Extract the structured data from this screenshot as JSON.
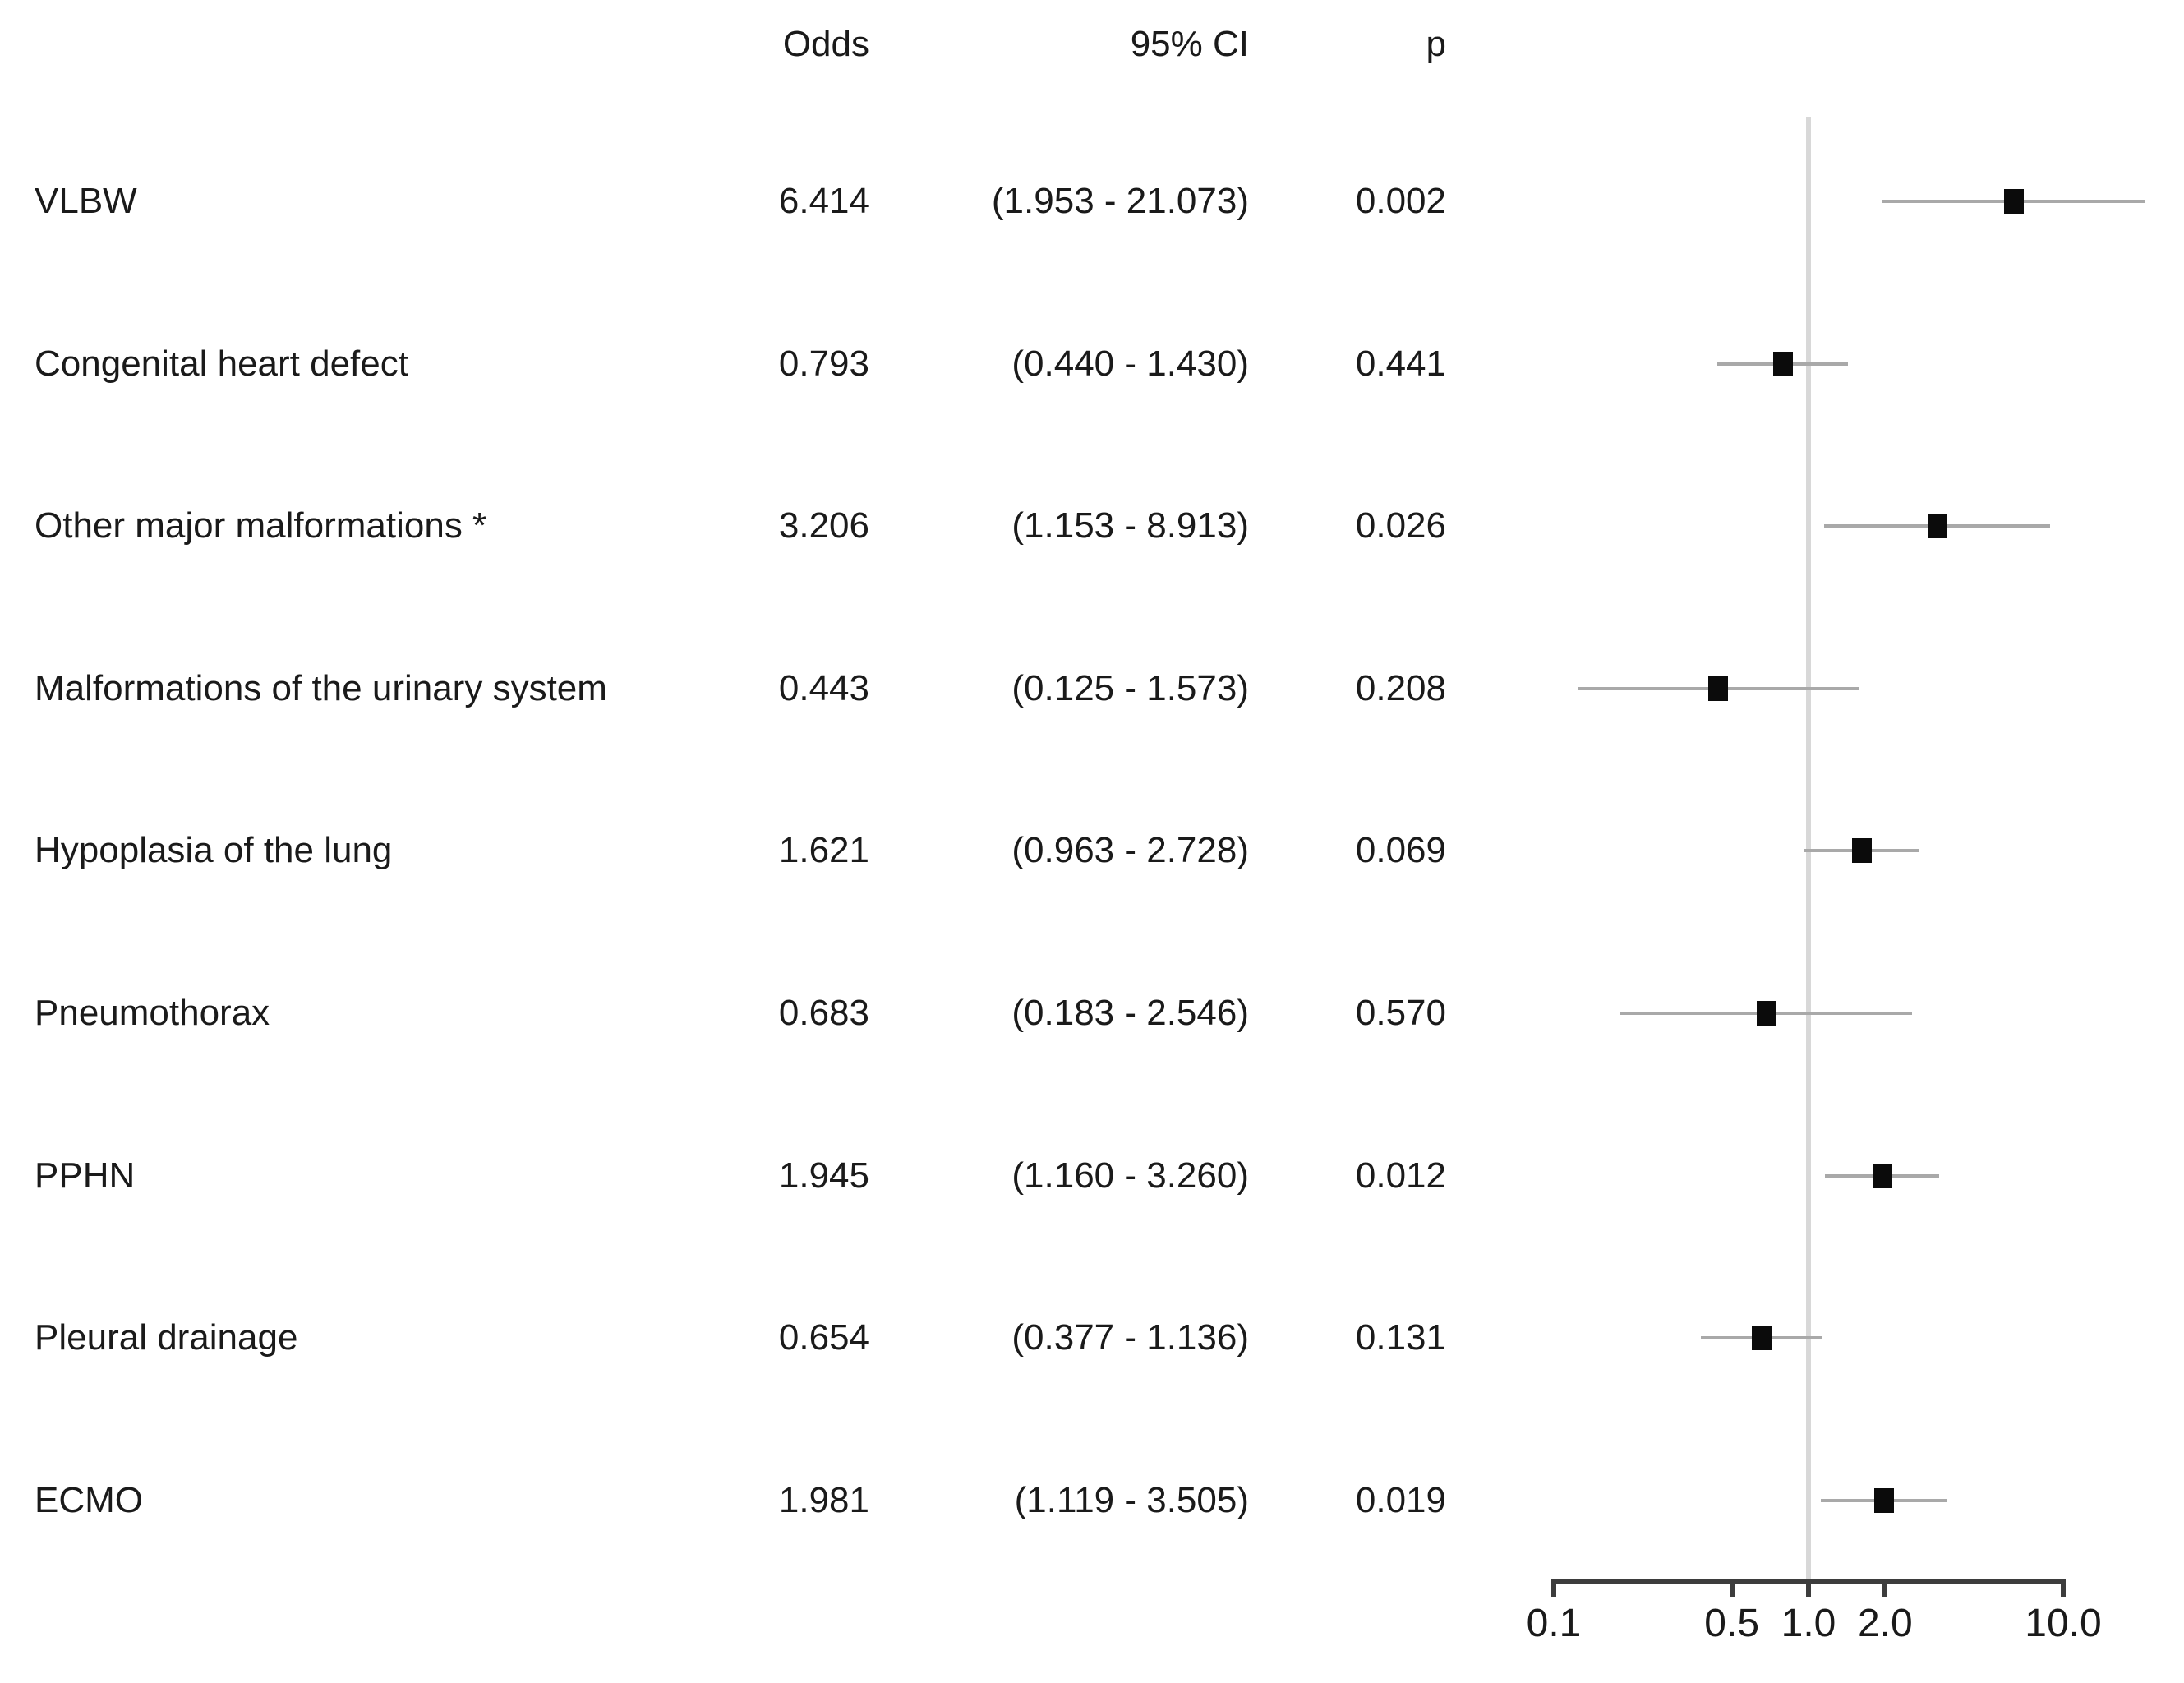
{
  "figure": {
    "kind": "forest plot of odds ratios with 95% confidence intervals",
    "background_color": "#ffffff",
    "text_color": "#1a1a1a",
    "marker_color": "#0b0b0b",
    "ci_line_color": "#a9a9a9",
    "reference_line_color": "#d8d8d8",
    "axis_color": "#3d3d3d"
  },
  "header": {
    "odds_label": "Odds",
    "ci_label": "95% CI",
    "p_label": "p"
  },
  "chart_data": {
    "type": "scatter",
    "variant": "forest-plot",
    "title": "",
    "xlabel": "",
    "ylabel": "",
    "x_axis": {
      "scale": "log",
      "range": [
        0.1,
        10.0
      ],
      "tick_values": [
        0.1,
        0.5,
        1.0,
        2.0,
        10.0
      ],
      "tick_labels": [
        "0.1",
        "0.5",
        "1.0",
        "2.0",
        "10.0"
      ],
      "reference_line_at": 1.0
    },
    "grid": false,
    "legend": false,
    "rows": [
      {
        "label": "VLBW",
        "odds": 6.414,
        "ci_low": 1.953,
        "ci_high": 21.073,
        "odds_text": "6.414",
        "ci_text": "(1.953 - 21.073)",
        "p_text": "0.002"
      },
      {
        "label": "Congenital heart defect",
        "odds": 0.793,
        "ci_low": 0.44,
        "ci_high": 1.43,
        "odds_text": "0.793",
        "ci_text": "(0.440 - 1.430)",
        "p_text": "0.441"
      },
      {
        "label": "Other major malformations *",
        "odds": 3.206,
        "ci_low": 1.153,
        "ci_high": 8.913,
        "odds_text": "3.206",
        "ci_text": "(1.153 - 8.913)",
        "p_text": "0.026"
      },
      {
        "label": "Malformations of the urinary system",
        "odds": 0.443,
        "ci_low": 0.125,
        "ci_high": 1.573,
        "odds_text": "0.443",
        "ci_text": "(0.125 - 1.573)",
        "p_text": "0.208"
      },
      {
        "label": "Hypoplasia of the lung",
        "odds": 1.621,
        "ci_low": 0.963,
        "ci_high": 2.728,
        "odds_text": "1.621",
        "ci_text": "(0.963 - 2.728)",
        "p_text": "0.069"
      },
      {
        "label": "Pneumothorax",
        "odds": 0.683,
        "ci_low": 0.183,
        "ci_high": 2.546,
        "odds_text": "0.683",
        "ci_text": "(0.183 - 2.546)",
        "p_text": "0.570"
      },
      {
        "label": "PPHN",
        "odds": 1.945,
        "ci_low": 1.16,
        "ci_high": 3.26,
        "odds_text": "1.945",
        "ci_text": "(1.160 - 3.260)",
        "p_text": "0.012"
      },
      {
        "label": "Pleural drainage",
        "odds": 0.654,
        "ci_low": 0.377,
        "ci_high": 1.136,
        "odds_text": "0.654",
        "ci_text": "(0.377 - 1.136)",
        "p_text": "0.131"
      },
      {
        "label": "ECMO",
        "odds": 1.981,
        "ci_low": 1.119,
        "ci_high": 3.505,
        "odds_text": "1.981",
        "ci_text": "(1.119 - 3.505)",
        "p_text": "0.019"
      }
    ]
  }
}
